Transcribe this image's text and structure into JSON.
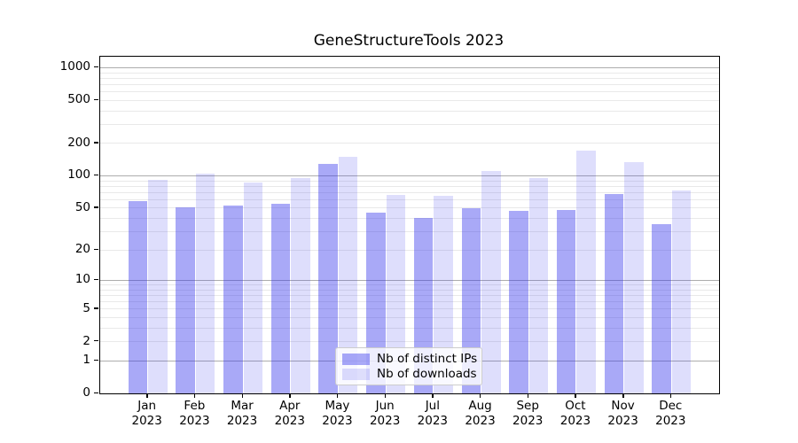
{
  "chart_data": {
    "type": "bar",
    "title": "GeneStructureTools 2023",
    "x_tick_labels": [
      [
        "Jan",
        "2023"
      ],
      [
        "Feb",
        "2023"
      ],
      [
        "Mar",
        "2023"
      ],
      [
        "Apr",
        "2023"
      ],
      [
        "May",
        "2023"
      ],
      [
        "Jun",
        "2023"
      ],
      [
        "Jul",
        "2023"
      ],
      [
        "Aug",
        "2023"
      ],
      [
        "Sep",
        "2023"
      ],
      [
        "Oct",
        "2023"
      ],
      [
        "Nov",
        "2023"
      ],
      [
        "Dec",
        "2023"
      ]
    ],
    "series": [
      {
        "name": "Nb of distinct IPs",
        "color": "rgba(50,50,235,0.42)",
        "values": [
          58,
          51,
          53,
          55,
          128,
          45,
          40,
          50,
          47,
          48,
          68,
          35
        ]
      },
      {
        "name": "Nb of downloads",
        "color": "rgba(50,50,235,0.16)",
        "values": [
          91,
          105,
          87,
          96,
          149,
          67,
          65,
          112,
          95,
          170,
          135,
          73
        ]
      }
    ],
    "y_ticks": [
      0,
      1,
      2,
      5,
      10,
      20,
      50,
      100,
      200,
      500,
      1000
    ],
    "y_scale": "log-like (position proportional to log10(1+v))",
    "ylim": [
      0,
      1263
    ],
    "xlabel": "",
    "ylabel": "",
    "grid": "both",
    "legend_position": "lower center inside plot",
    "colors": {
      "grid_major": "#adadad",
      "grid_minor": "#e9e9e9",
      "axis": "#000000",
      "text": "#000000",
      "background": "#ffffff"
    }
  }
}
